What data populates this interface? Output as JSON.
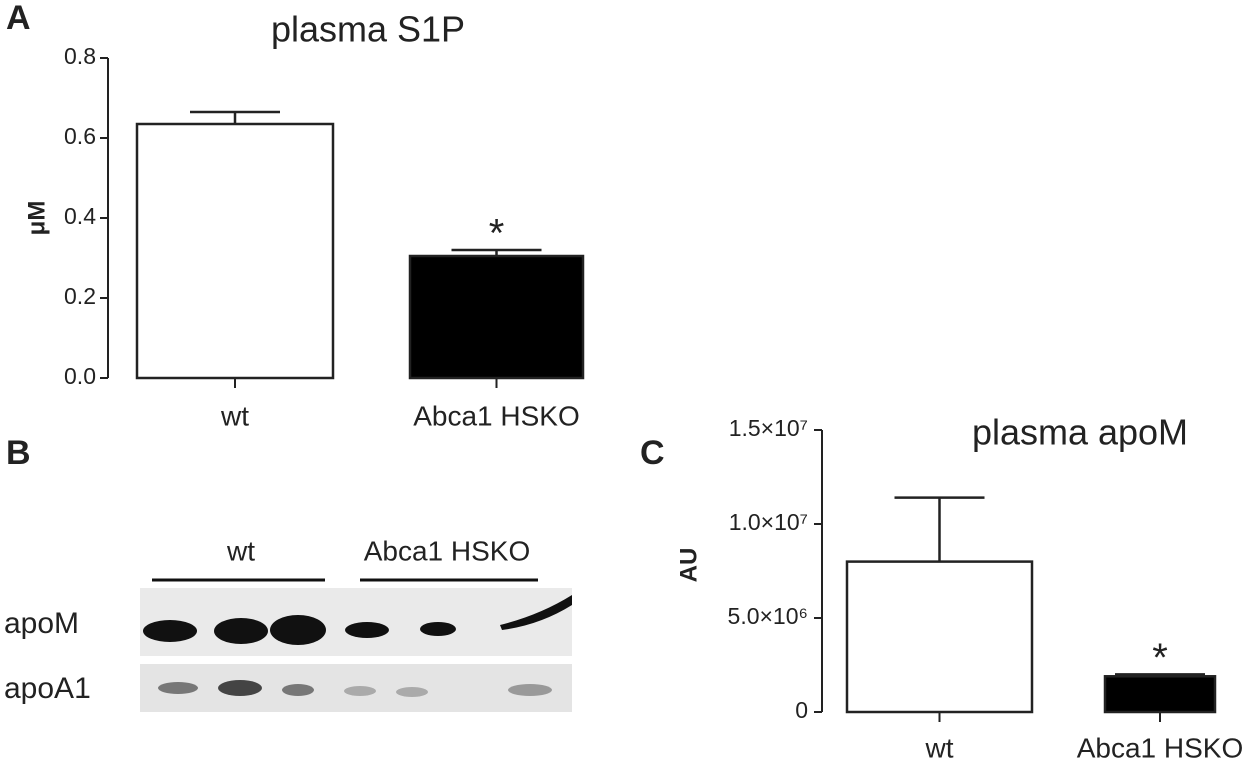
{
  "chart_data": [
    {
      "type": "bar",
      "panel": "A",
      "title": "plasma S1P",
      "y_label": "μM",
      "categories": [
        "wt",
        "Abca1 HSKO"
      ],
      "values": [
        0.635,
        0.305
      ],
      "errors": [
        0.03,
        0.015
      ],
      "colors": [
        "#ffffff",
        "#000000"
      ],
      "ylim": [
        0,
        0.8
      ],
      "yticks": [
        {
          "value": 0,
          "label": "0.0"
        },
        0.2,
        0.4,
        0.6,
        0.8
      ],
      "annotations": [
        {
          "text": "*",
          "category": "Abca1 HSKO"
        }
      ]
    },
    {
      "type": "bar",
      "panel": "C",
      "title": "plasma apoM",
      "y_label": "AU",
      "categories": [
        "wt",
        "Abca1 HSKO"
      ],
      "values": [
        8000000,
        1900000
      ],
      "errors": [
        3400000,
        100000
      ],
      "colors": [
        "#ffffff",
        "#000000"
      ],
      "ylim": [
        0,
        15000000
      ],
      "yticks": [
        0,
        {
          "value": 5000000,
          "label": "5.0×10⁶"
        },
        {
          "value": 10000000,
          "label": "1.0×10⁷"
        },
        {
          "value": 15000000,
          "label": "1.5×10⁷"
        }
      ],
      "annotations": [
        {
          "text": "*",
          "category": "Abca1 HSKO"
        }
      ]
    }
  ],
  "blot": {
    "panel": "B",
    "groups": [
      "wt",
      "Abca1 HSKO"
    ],
    "rows": [
      "apoM",
      "apoA1"
    ]
  }
}
